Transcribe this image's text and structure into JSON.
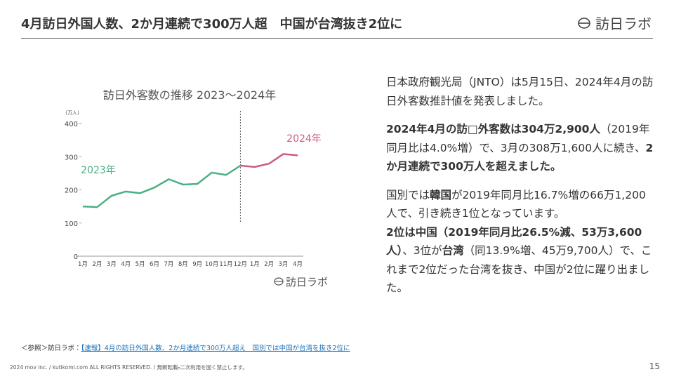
{
  "header": {
    "title": "4月訪日外国人数、2か月連続で300万人超　中国が台湾抜き2位に",
    "logo": "訪日ラボ"
  },
  "chart_data": {
    "type": "line",
    "title": "訪日外客数の推移 2023〜2024年",
    "y_unit": "(万人)",
    "categories": [
      "1月",
      "2月",
      "3月",
      "4月",
      "5月",
      "6月",
      "7月",
      "8月",
      "9月",
      "10月",
      "11月",
      "12月",
      "1月",
      "2月",
      "3月",
      "4月"
    ],
    "series": [
      {
        "name": "2023年",
        "color": "#4caf84",
        "values": [
          150,
          148,
          182,
          195,
          190,
          207,
          232,
          216,
          218,
          252,
          245,
          273,
          null,
          null,
          null,
          null
        ]
      },
      {
        "name": "2024年",
        "color": "#cc5c84",
        "values": [
          null,
          null,
          null,
          null,
          null,
          null,
          null,
          null,
          null,
          null,
          null,
          273,
          269,
          279,
          308,
          304
        ]
      }
    ],
    "ylim": [
      0,
      400
    ],
    "yticks": [
      0,
      100,
      200,
      300,
      400
    ],
    "divider_index": 11,
    "watermark": "訪日ラボ"
  },
  "body": {
    "paragraphs": [
      [
        {
          "text": "日本政府観光局（JNTO）は5月15日、2024年4月の訪日外客数推計値を発表しました。",
          "bold": false
        }
      ],
      [
        {
          "text": "2024年4月の訪□外客数は304万2,900人",
          "bold": true
        },
        {
          "text": "（2019年同月比は4.0%増）で、3月の308万1,600人に続き、",
          "bold": false
        },
        {
          "text": "2か月連続で300万人を超えました。",
          "bold": true
        }
      ],
      [
        {
          "text": "国別では",
          "bold": false
        },
        {
          "text": "韓国",
          "bold": true
        },
        {
          "text": "が2019年同月比16.7%増の66万1,200人で、引き続き1位となっています。",
          "bold": false
        }
      ],
      [
        {
          "text": "2位は中国（2019年同月比26.5%減、53万3,600人）",
          "bold": true
        },
        {
          "text": "、3位が",
          "bold": false
        },
        {
          "text": "台湾",
          "bold": true
        },
        {
          "text": "（同13.9%増、45万9,700人）で、これまで2位だった台湾を抜き、中国が2位に躍り出ました。",
          "bold": false
        }
      ]
    ]
  },
  "reference": {
    "prefix": "＜参照＞訪日ラボ：",
    "link": "【速報】4月の訪日外国人数、2か月連続で300万人超え　国別では中国が台湾を抜き2位に"
  },
  "footer": {
    "copyright": "2024 mov inc. / kutikomi.com ALL RIGHTS RESERVED. / 無断転載・二次利用を固く禁止します。",
    "page": "15"
  }
}
